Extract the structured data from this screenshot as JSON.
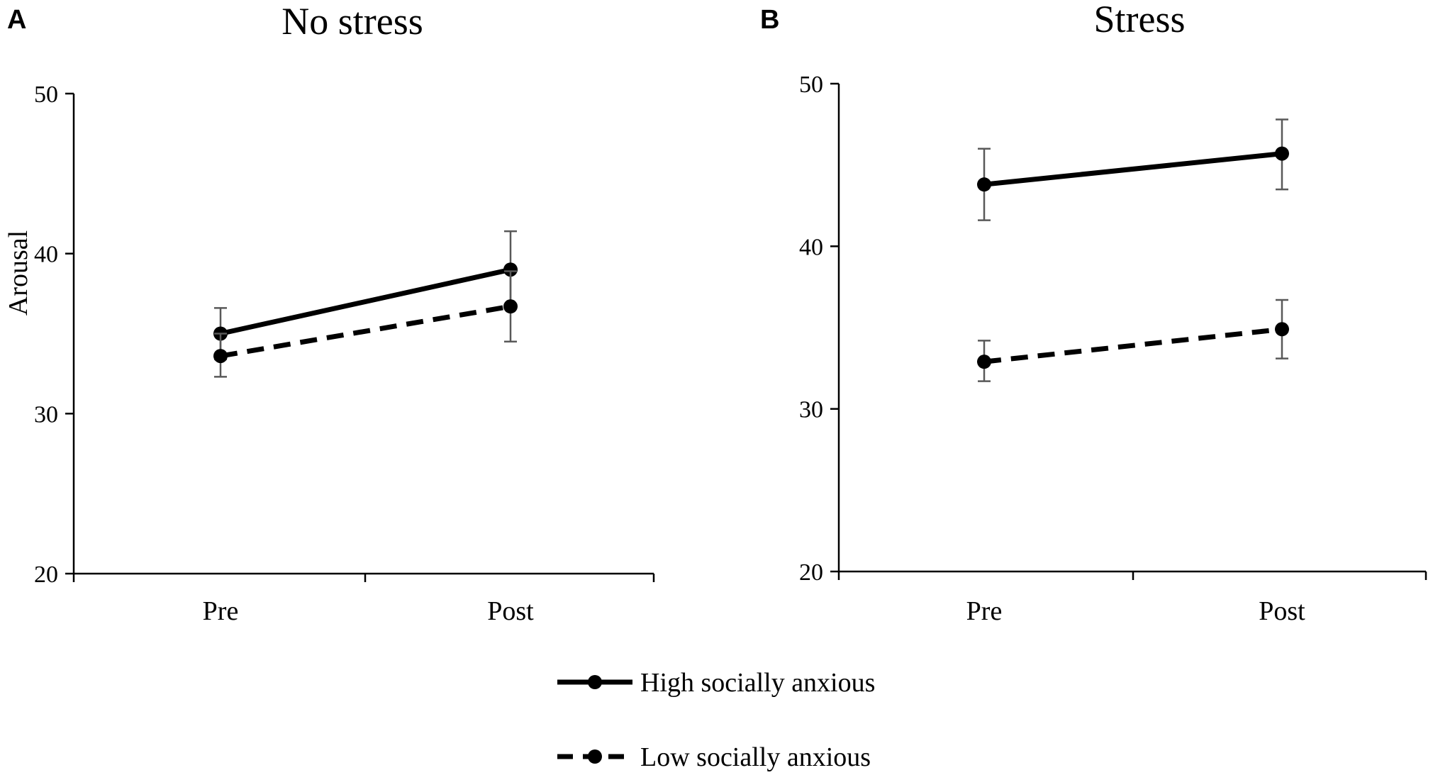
{
  "chart_data": [
    {
      "type": "line",
      "panel_letter": "A",
      "title": "No stress",
      "xlabel": "",
      "ylabel": "Arousal",
      "ylim": [
        20,
        50
      ],
      "yticks": [
        20,
        30,
        40,
        50
      ],
      "categories": [
        "Pre",
        "Post"
      ],
      "grid": false,
      "series": [
        {
          "name": "High socially anxious",
          "style": "solid",
          "values": [
            35.0,
            39.0
          ],
          "err_low": [
            33.4,
            36.6
          ],
          "err_high": [
            36.6,
            41.4
          ]
        },
        {
          "name": "Low socially anxious",
          "style": "dashed",
          "values": [
            33.6,
            36.7
          ],
          "err_low": [
            32.3,
            34.5
          ],
          "err_high": [
            35.0,
            38.9
          ]
        }
      ]
    },
    {
      "type": "line",
      "panel_letter": "B",
      "title": "Stress",
      "xlabel": "",
      "ylabel": "",
      "ylim": [
        20,
        50
      ],
      "yticks": [
        20,
        30,
        40,
        50
      ],
      "categories": [
        "Pre",
        "Post"
      ],
      "grid": false,
      "series": [
        {
          "name": "High socially anxious",
          "style": "solid",
          "values": [
            43.8,
            45.7
          ],
          "err_low": [
            41.6,
            43.5
          ],
          "err_high": [
            46.0,
            47.8
          ]
        },
        {
          "name": "Low socially anxious",
          "style": "dashed",
          "values": [
            32.9,
            34.9
          ],
          "err_low": [
            31.7,
            33.1
          ],
          "err_high": [
            34.2,
            36.7
          ]
        }
      ]
    }
  ],
  "legend": {
    "placement": "bottom-center",
    "entries": [
      {
        "label": "High socially anxious",
        "style": "solid"
      },
      {
        "label": "Low socially anxious",
        "style": "dashed"
      }
    ]
  },
  "colors": {
    "line": "#000000",
    "error_bar": "#595959",
    "background": "#ffffff"
  }
}
